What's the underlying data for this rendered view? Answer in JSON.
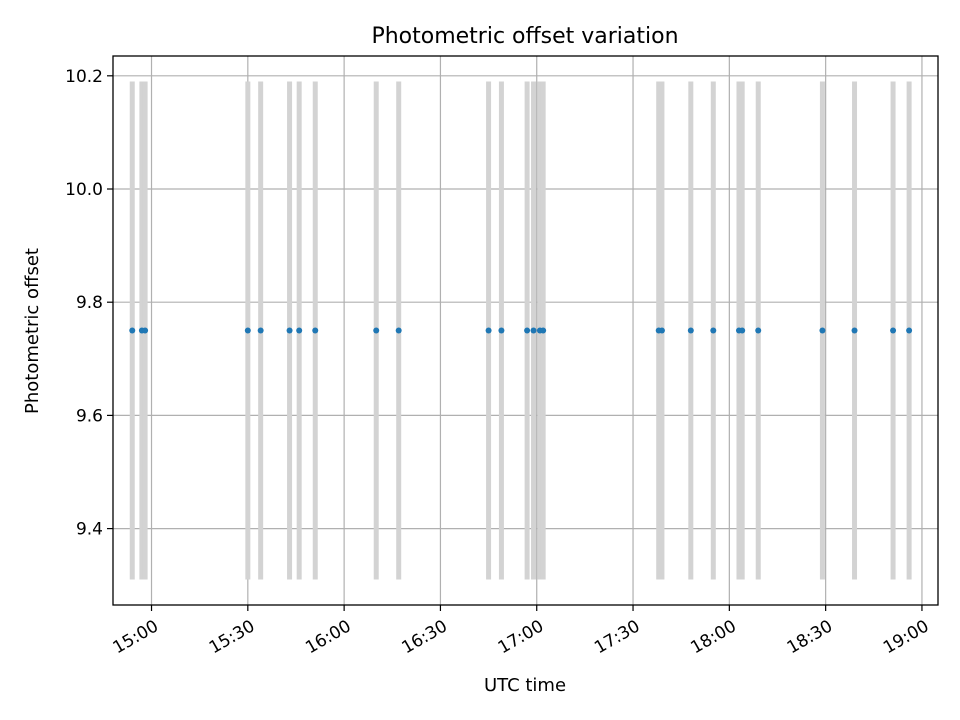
{
  "chart_data": {
    "type": "scatter",
    "title": "Photometric offset variation",
    "xlabel": "UTC time",
    "ylabel": "Photometric offset",
    "x_ticks": [
      "15:00",
      "15:30",
      "16:00",
      "16:30",
      "17:00",
      "17:30",
      "18:00",
      "18:30",
      "19:00"
    ],
    "y_ticks": [
      "9.4",
      "9.6",
      "9.8",
      "10.0",
      "10.2"
    ],
    "xlim": [
      "14:48",
      "19:05"
    ],
    "ylim": [
      9.265,
      10.235
    ],
    "grid": true,
    "colors": {
      "points": "#1f77b4",
      "error_bars": "#d3d3d3",
      "grid": "#b0b0b0"
    },
    "error_bar_range": [
      9.31,
      10.19
    ],
    "points": [
      {
        "x": "14:54",
        "y": 9.75
      },
      {
        "x": "14:57",
        "y": 9.75
      },
      {
        "x": "14:58",
        "y": 9.75
      },
      {
        "x": "15:30",
        "y": 9.75
      },
      {
        "x": "15:34",
        "y": 9.75
      },
      {
        "x": "15:43",
        "y": 9.75
      },
      {
        "x": "15:46",
        "y": 9.75
      },
      {
        "x": "15:51",
        "y": 9.75
      },
      {
        "x": "16:10",
        "y": 9.75
      },
      {
        "x": "16:17",
        "y": 9.75
      },
      {
        "x": "16:45",
        "y": 9.75
      },
      {
        "x": "16:49",
        "y": 9.75
      },
      {
        "x": "16:57",
        "y": 9.75
      },
      {
        "x": "16:59",
        "y": 9.75
      },
      {
        "x": "17:01",
        "y": 9.75
      },
      {
        "x": "17:02",
        "y": 9.75
      },
      {
        "x": "17:38",
        "y": 9.75
      },
      {
        "x": "17:39",
        "y": 9.75
      },
      {
        "x": "17:48",
        "y": 9.75
      },
      {
        "x": "17:55",
        "y": 9.75
      },
      {
        "x": "18:03",
        "y": 9.75
      },
      {
        "x": "18:04",
        "y": 9.75
      },
      {
        "x": "18:09",
        "y": 9.75
      },
      {
        "x": "18:29",
        "y": 9.75
      },
      {
        "x": "18:39",
        "y": 9.75
      },
      {
        "x": "18:51",
        "y": 9.75
      },
      {
        "x": "18:56",
        "y": 9.75
      }
    ]
  }
}
